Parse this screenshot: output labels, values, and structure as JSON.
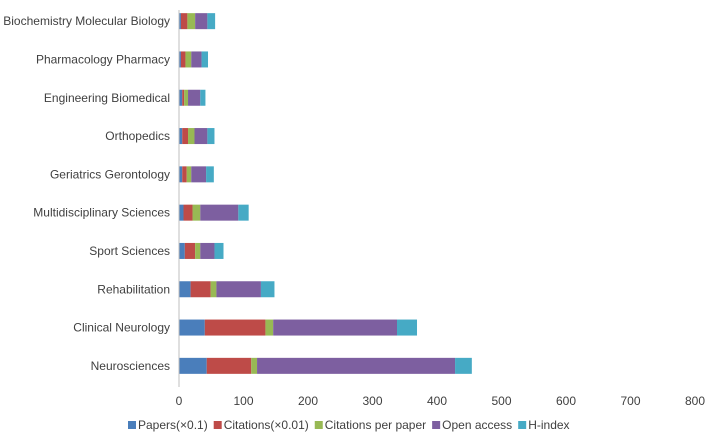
{
  "chart_data": {
    "type": "bar",
    "orientation": "horizontal",
    "stacked": true,
    "title": "",
    "xlabel": "",
    "ylabel": "",
    "xlim": [
      0,
      800
    ],
    "xticks": [
      "0",
      "100",
      "200",
      "300",
      "400",
      "500",
      "600",
      "700",
      "800"
    ],
    "grid": false,
    "legend_position": "bottom",
    "categories": [
      "Biochemistry Molecular Biology",
      "Pharmacology Pharmacy",
      "Engineering Biomedical",
      "Orthopedics",
      "Geriatrics Gerontology",
      "Multidisciplinary Sciences",
      "Sport Sciences",
      "Rehabilitation",
      "Clinical Neurology",
      "Neurosciences"
    ],
    "series": [
      {
        "name": "Papers(×0.1)",
        "color": "#4a7ebb",
        "values": [
          3,
          3,
          5,
          5,
          5,
          7,
          9,
          18,
          40,
          43
        ]
      },
      {
        "name": "Citations(×0.01)",
        "color": "#be4b48",
        "values": [
          10,
          7,
          3,
          9,
          7,
          14,
          16,
          31,
          94,
          69
        ]
      },
      {
        "name": "Citations per paper",
        "color": "#98b954",
        "values": [
          12,
          9,
          6,
          10,
          7,
          12,
          8,
          9,
          12,
          9
        ]
      },
      {
        "name": "Open access",
        "color": "#7d5fa0",
        "values": [
          19,
          16,
          19,
          20,
          23,
          59,
          22,
          69,
          192,
          307
        ]
      },
      {
        "name": "H-index",
        "color": "#46aac5",
        "values": [
          12,
          10,
          8,
          11,
          12,
          16,
          14,
          21,
          31,
          26
        ]
      }
    ]
  }
}
